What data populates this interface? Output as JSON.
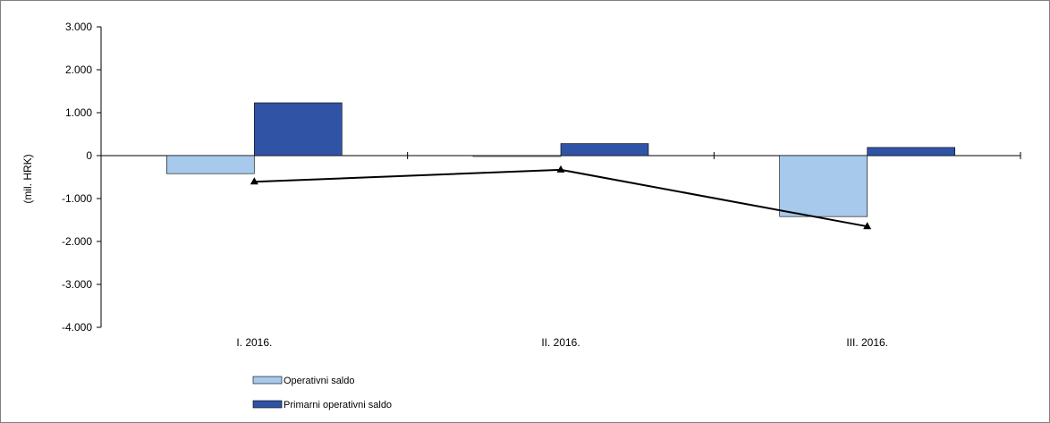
{
  "chart_data": {
    "type": "bar",
    "ylabel": "(mil. HRK)",
    "ylim": [
      -4000,
      3000
    ],
    "yticks": [
      "3.000",
      "2.000",
      "1.000",
      "0",
      "-1.000",
      "-2.000",
      "-3.000",
      "-4.000"
    ],
    "yticks_values": [
      3000,
      2000,
      1000,
      0,
      -1000,
      -2000,
      -3000,
      -4000
    ],
    "categories": [
      "I. 2016.",
      "II. 2016.",
      "III. 2016."
    ],
    "series": [
      {
        "name": "Operativni saldo",
        "kind": "bar",
        "color": "#a6c9ec",
        "values": [
          -420,
          -20,
          -1420
        ]
      },
      {
        "name": "Primarni operativni saldo",
        "kind": "bar",
        "color": "#3153a6",
        "values": [
          1230,
          280,
          190
        ]
      },
      {
        "kind": "line",
        "marker": "triangle",
        "color": "#000000",
        "values": [
          -610,
          -330,
          -1650
        ]
      }
    ],
    "grid": false,
    "legend_position": "bottom-left"
  }
}
